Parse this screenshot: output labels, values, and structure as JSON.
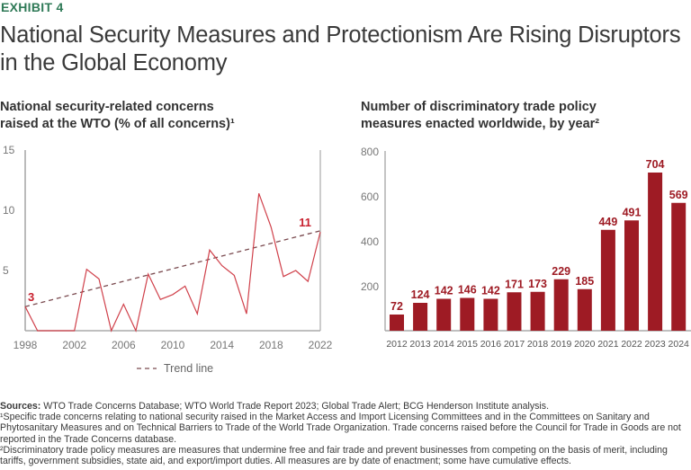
{
  "exhibit_label": "EXHIBIT 4",
  "title": "National Security Measures and Protectionism Are Rising Disruptors in the Global Economy",
  "colors": {
    "accent_green": "#2f7a57",
    "bar_red": "#9e1b24",
    "line_red": "#d0414b",
    "trend": "#7a4a4f",
    "axis": "#aaaaaa"
  },
  "chart_data": [
    {
      "type": "line",
      "title": "National security-related concerns raised at the WTO (% of all concerns)¹",
      "title_lines": [
        "National security-related concerns",
        "raised at the WTO (% of all concerns)¹"
      ],
      "xlabel": "",
      "ylabel": "",
      "x": [
        1998,
        1999,
        2000,
        2001,
        2002,
        2003,
        2004,
        2005,
        2006,
        2007,
        2008,
        2009,
        2010,
        2011,
        2012,
        2013,
        2014,
        2015,
        2016,
        2017,
        2018,
        2019,
        2020,
        2021,
        2022
      ],
      "series": [
        {
          "name": "National security-related concerns (%)",
          "values": [
            2.0,
            0,
            0,
            0,
            0,
            5.1,
            4.3,
            0,
            2.2,
            0,
            4.7,
            2.6,
            3.0,
            3.7,
            1.4,
            6.7,
            5.4,
            4.6,
            1.4,
            11.4,
            8.6,
            4.5,
            5.0,
            4.1,
            8.2
          ]
        },
        {
          "name": "Trend line",
          "style": "dashed",
          "values_endpoints": {
            "1998": 2.0,
            "2022": 8.3
          }
        }
      ],
      "annotations": [
        {
          "x": 1998,
          "text": "3"
        },
        {
          "x": 2022,
          "text": "11"
        }
      ],
      "xticks": [
        "1998",
        "2002",
        "2006",
        "2010",
        "2014",
        "2018",
        "2022"
      ],
      "yticks": [
        "5",
        "10",
        "15"
      ],
      "xlim": [
        1998,
        2022
      ],
      "ylim": [
        0,
        15
      ],
      "grid": false,
      "legend": {
        "placement": "bottom-center",
        "entries": [
          "Trend line"
        ]
      }
    },
    {
      "type": "bar",
      "title": "Number of discriminatory trade policy measures enacted worldwide, by year²",
      "title_lines": [
        "Number of discriminatory trade policy",
        "measures enacted worldwide, by year²"
      ],
      "xlabel": "",
      "ylabel": "",
      "categories": [
        "2012",
        "2013",
        "2014",
        "2015",
        "2016",
        "2017",
        "2018",
        "2019",
        "2020",
        "2021",
        "2022",
        "2023",
        "2024"
      ],
      "values": [
        72,
        124,
        142,
        146,
        142,
        171,
        173,
        229,
        185,
        449,
        491,
        704,
        569
      ],
      "yticks": [
        "200",
        "400",
        "600",
        "800"
      ],
      "ylim": [
        0,
        800
      ],
      "grid": false
    }
  ],
  "footnotes": {
    "sources_label": "Sources:",
    "sources_text": " WTO Trade Concerns Database; WTO World Trade Report 2023; Global Trade Alert; BCG Henderson Institute analysis.",
    "note1": "¹Specific trade concerns relating to national security raised in the Market Access and Import Licensing Committees and in the Committees on Sanitary and Phytosanitary Measures and on Technical Barriers to Trade of the World Trade Organization. Trade concerns raised before the Council for Trade in Goods are not reported in the Trade Concerns database.",
    "note2": "²Discriminatory trade policy measures are measures that undermine free and fair trade and prevent businesses from competing on the basis of merit, including tariffs, government subsidies, state aid, and export/import duties. All measures are by date of enactment; some have cumulative effects."
  }
}
